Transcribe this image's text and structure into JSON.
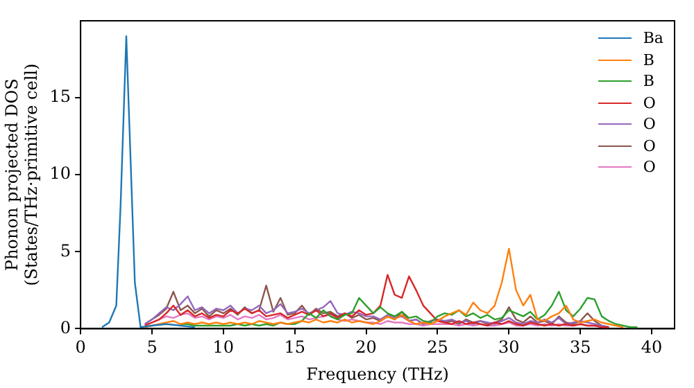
{
  "chart_data": {
    "type": "line",
    "xlabel": "Frequency (THz)",
    "ylabel": "Phonon projected DOS\n(States/THz·primitive cell)",
    "xlim": [
      0,
      41.6
    ],
    "ylim": [
      0,
      20
    ],
    "xticks": [
      0,
      5,
      10,
      15,
      20,
      25,
      30,
      35,
      40
    ],
    "yticks": [
      0,
      5,
      10,
      15
    ],
    "grid": false,
    "legend": "top right",
    "marker": "none",
    "line_style": "solid",
    "x": [
      4.5,
      5,
      5.5,
      6,
      6.5,
      7,
      7.5,
      8,
      8.5,
      9,
      9.5,
      10,
      10.5,
      11,
      11.5,
      12,
      12.5,
      13,
      13.5,
      14,
      14.5,
      15,
      15.5,
      16,
      16.5,
      17,
      17.5,
      18,
      18.5,
      19,
      19.5,
      20,
      20.5,
      21,
      21.5,
      22,
      22.5,
      23,
      23.5,
      24,
      24.5,
      25,
      25.5,
      26,
      26.5,
      27,
      27.5,
      28,
      28.5,
      29,
      29.5,
      30,
      30.5,
      31,
      31.5,
      32,
      32.5,
      33,
      33.5,
      34,
      34.5,
      35,
      35.5,
      36,
      36.5,
      37,
      37.5,
      38,
      38.5,
      39
    ],
    "series": [
      {
        "name": "Ba",
        "color": "#1f77b4",
        "x": [
          1.5,
          2,
          2.5,
          2.8,
          3.2,
          3.5,
          3.8,
          4.2,
          5,
          6,
          7,
          8
        ],
        "values": [
          0.1,
          0.4,
          1.5,
          8,
          19,
          11,
          3,
          0.1,
          0.2,
          0.3,
          0.2,
          0.1
        ]
      },
      {
        "name": "B",
        "color": "#ff7f0e",
        "values": [
          0.1,
          0.2,
          0.3,
          0.4,
          0.5,
          0.3,
          0.4,
          0.3,
          0.4,
          0.3,
          0.4,
          0.3,
          0.4,
          0.3,
          0.4,
          0.3,
          0.5,
          0.4,
          0.3,
          0.4,
          0.3,
          0.4,
          0.5,
          0.4,
          0.6,
          0.4,
          0.5,
          0.4,
          0.6,
          0.4,
          0.5,
          0.4,
          0.3,
          0.5,
          0.8,
          0.6,
          0.9,
          0.5,
          0.3,
          0.4,
          0.3,
          0.5,
          0.8,
          1.0,
          1.2,
          0.9,
          1.7,
          1.2,
          1.0,
          1.5,
          3.0,
          5.2,
          2.5,
          1.5,
          2.2,
          0.6,
          0.5,
          0.8,
          1.0,
          1.5,
          0.6,
          0.4,
          0.5,
          0.6,
          0.4,
          0.3,
          0.2,
          0.1,
          null,
          null
        ]
      },
      {
        "name": "B",
        "color": "#2ca02c",
        "values": [
          null,
          null,
          null,
          null,
          null,
          0.3,
          0.3,
          0.2,
          0.2,
          0.2,
          0.2,
          0.2,
          0.2,
          0.3,
          0.2,
          0.3,
          0.2,
          0.3,
          0.2,
          0.4,
          0.3,
          0.3,
          0.5,
          1.0,
          0.7,
          1.2,
          0.8,
          0.6,
          0.9,
          1.0,
          2.0,
          1.5,
          1.0,
          1.4,
          1.0,
          0.8,
          1.1,
          0.7,
          0.8,
          0.5,
          0.4,
          0.8,
          1.0,
          0.9,
          1.2,
          0.8,
          1.0,
          0.7,
          0.9,
          0.6,
          0.7,
          1.2,
          1.0,
          0.8,
          1.1,
          0.6,
          0.9,
          1.5,
          2.4,
          1.2,
          0.8,
          1.3,
          2.0,
          1.9,
          0.8,
          0.5,
          0.3,
          0.2,
          0.1,
          0.1
        ]
      },
      {
        "name": "O",
        "color": "#d62728",
        "values": [
          0.2,
          0.4,
          0.6,
          1.0,
          1.5,
          0.9,
          1.2,
          0.8,
          1.0,
          0.7,
          0.9,
          0.8,
          1.2,
          1.0,
          1.3,
          1.0,
          1.2,
          0.8,
          0.9,
          1.0,
          0.7,
          0.9,
          1.1,
          0.9,
          1.2,
          0.8,
          1.0,
          0.7,
          1.0,
          0.8,
          1.2,
          0.9,
          1.0,
          1.5,
          3.5,
          2.2,
          2.0,
          3.4,
          2.5,
          1.5,
          1.0,
          0.5,
          0.4,
          0.3,
          0.5,
          0.3,
          0.4,
          0.3,
          0.2,
          0.4,
          0.3,
          0.5,
          0.3,
          0.2,
          0.4,
          0.3,
          0.2,
          0.3,
          0.2,
          0.3,
          0.2,
          0.3,
          0.2,
          0.2,
          0.1,
          0.1,
          null,
          null,
          null,
          null
        ]
      },
      {
        "name": "O",
        "color": "#9467bd",
        "values": [
          0.3,
          0.6,
          1.0,
          1.4,
          1.2,
          1.6,
          2.1,
          1.2,
          1.4,
          1.0,
          1.3,
          1.2,
          1.5,
          1.0,
          1.3,
          1.2,
          1.5,
          1.0,
          1.2,
          1.6,
          1.0,
          1.1,
          1.3,
          1.0,
          1.2,
          1.4,
          1.8,
          1.0,
          0.9,
          1.1,
          1.0,
          0.8,
          0.8,
          0.6,
          0.9,
          0.7,
          0.8,
          0.5,
          0.6,
          0.3,
          0.5,
          0.6,
          0.5,
          0.6,
          0.4,
          0.5,
          0.3,
          0.5,
          0.4,
          0.3,
          0.5,
          0.7,
          0.4,
          0.3,
          0.5,
          0.4,
          0.6,
          0.4,
          0.7,
          0.3,
          0.4,
          0.5,
          0.4,
          0.3,
          0.2,
          0.1,
          null,
          null,
          null,
          null
        ]
      },
      {
        "name": "O",
        "color": "#8c564b",
        "values": [
          0.3,
          0.6,
          0.9,
          1.3,
          2.4,
          1.2,
          1.5,
          1.0,
          1.3,
          0.8,
          1.2,
          1.0,
          1.3,
          0.9,
          1.4,
          1.0,
          1.2,
          2.8,
          1.1,
          2.0,
          0.9,
          1.0,
          1.5,
          0.9,
          1.3,
          1.0,
          1.1,
          0.8,
          1.0,
          0.7,
          0.9,
          0.6,
          0.7,
          0.5,
          0.8,
          0.6,
          1.1,
          0.5,
          0.6,
          0.3,
          0.5,
          0.6,
          0.4,
          0.5,
          0.3,
          0.6,
          0.4,
          0.5,
          0.3,
          0.4,
          0.6,
          1.4,
          0.6,
          0.4,
          0.8,
          0.4,
          0.5,
          0.3,
          0.8,
          0.4,
          0.3,
          0.5,
          1.0,
          0.5,
          0.2,
          0.1,
          null,
          null,
          null,
          null
        ]
      },
      {
        "name": "O",
        "color": "#e377c2",
        "values": [
          0.2,
          0.4,
          0.6,
          0.8,
          0.7,
          0.9,
          1.0,
          0.7,
          0.8,
          0.6,
          0.8,
          0.7,
          0.9,
          0.6,
          0.8,
          0.7,
          0.9,
          0.6,
          0.7,
          0.9,
          0.6,
          0.7,
          0.8,
          0.6,
          0.7,
          0.8,
          0.9,
          0.6,
          0.5,
          0.6,
          0.5,
          0.4,
          0.4,
          0.3,
          0.5,
          0.4,
          0.4,
          0.3,
          0.3,
          0.2,
          0.3,
          0.3,
          0.3,
          0.3,
          0.2,
          0.3,
          0.2,
          0.3,
          0.2,
          0.2,
          0.3,
          0.4,
          0.2,
          0.2,
          0.3,
          0.2,
          0.3,
          0.2,
          0.3,
          0.2,
          0.2,
          0.3,
          0.2,
          0.2,
          0.1,
          null,
          null,
          null,
          null,
          null
        ]
      }
    ]
  }
}
